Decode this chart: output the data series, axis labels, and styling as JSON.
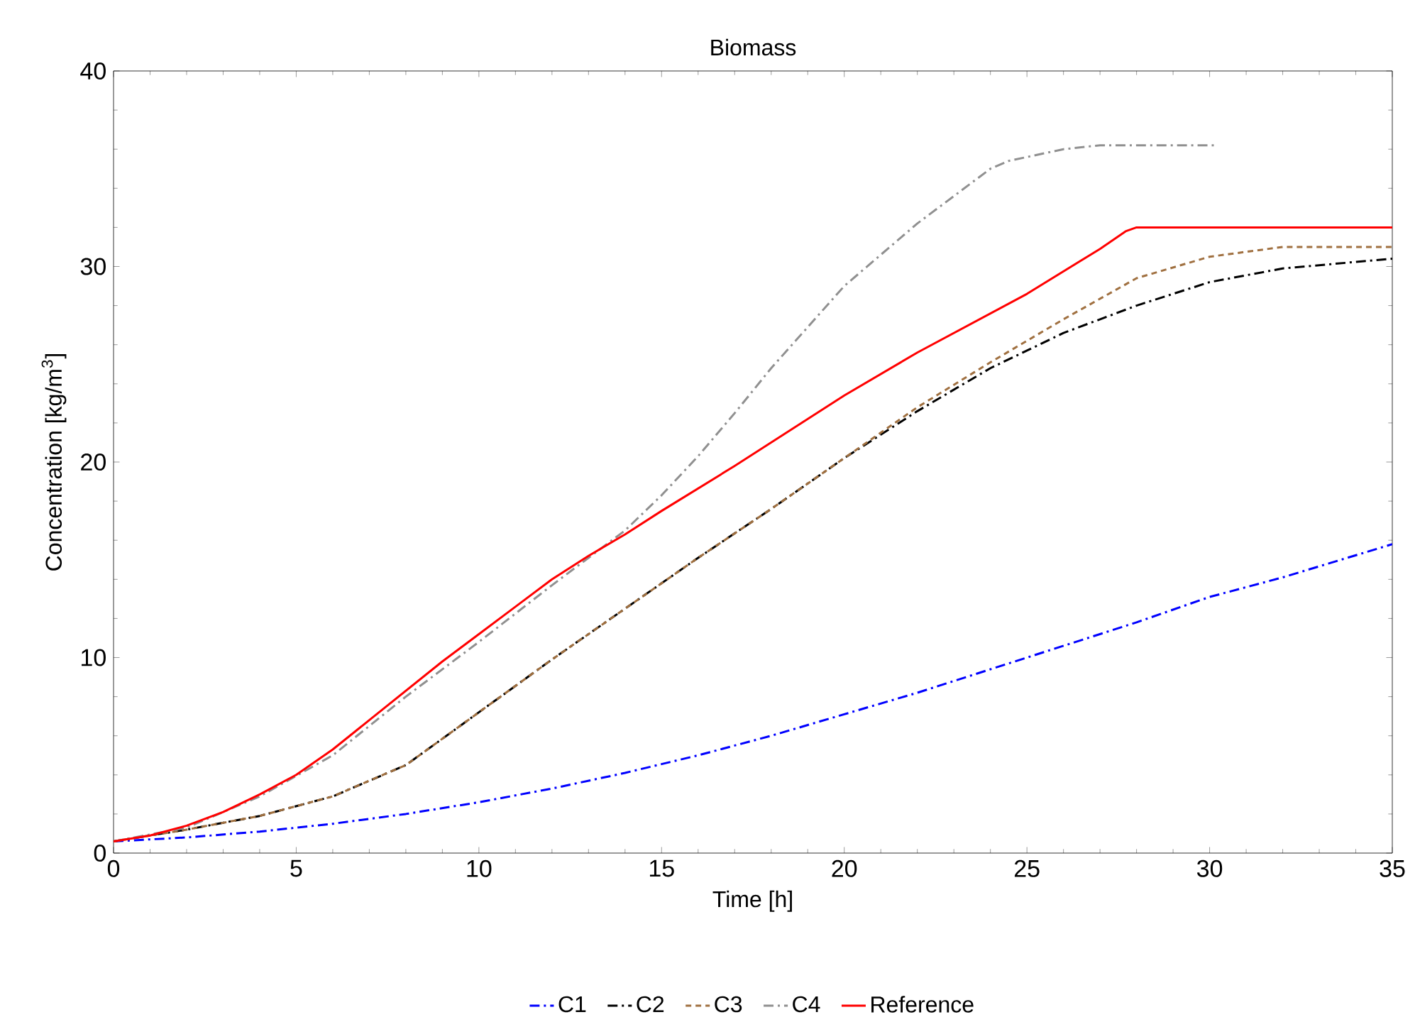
{
  "chart_data": {
    "type": "line",
    "title": "Biomass",
    "xlabel": "Time  [h]",
    "ylabel": "Concentration [kg/m$^{3}$]",
    "xlim": [
      0,
      35
    ],
    "ylim": [
      0,
      40
    ],
    "xticks": [
      0,
      5,
      10,
      15,
      20,
      25,
      30,
      35
    ],
    "yticks": [
      0,
      10,
      20,
      30,
      40
    ],
    "grid": false,
    "legend": "bottom",
    "series": [
      {
        "name": "C1",
        "color": "#0000ff",
        "line_style": "dashdot",
        "x": [
          0,
          2,
          4,
          6,
          8,
          10,
          12,
          14,
          16,
          18,
          20,
          22,
          25,
          28,
          30,
          32,
          35
        ],
        "values": [
          0.6,
          0.8,
          1.1,
          1.5,
          2.0,
          2.6,
          3.3,
          4.1,
          5.0,
          6.0,
          7.1,
          8.2,
          10.0,
          11.8,
          13.1,
          14.1,
          15.8
        ]
      },
      {
        "name": "C2",
        "color": "#000000",
        "line_style": "dashdot",
        "x": [
          0,
          2,
          4,
          6,
          8,
          10,
          12,
          14,
          16,
          18,
          20,
          22,
          24,
          26,
          28,
          30,
          32,
          35
        ],
        "values": [
          0.6,
          1.2,
          1.9,
          2.9,
          4.5,
          7.2,
          9.9,
          12.5,
          15.1,
          17.6,
          20.2,
          22.6,
          24.8,
          26.6,
          28.0,
          29.2,
          29.9,
          30.4
        ]
      },
      {
        "name": "C3",
        "color": "#a07040",
        "line_style": "dashed",
        "x": [
          0,
          2,
          4,
          6,
          8,
          10,
          12,
          14,
          16,
          18,
          20,
          22,
          24,
          26,
          28,
          30,
          32,
          35
        ],
        "values": [
          0.6,
          1.2,
          1.9,
          2.9,
          4.5,
          7.2,
          9.9,
          12.5,
          15.1,
          17.6,
          20.2,
          22.8,
          25.1,
          27.3,
          29.4,
          30.5,
          31.0,
          31.0
        ]
      },
      {
        "name": "C4",
        "color": "#909090",
        "line_style": "dashdot",
        "x": [
          0,
          2,
          4,
          6,
          8,
          10,
          12,
          13,
          14,
          15,
          16,
          17,
          18,
          20,
          22,
          24,
          24.5,
          26,
          27,
          30.2
        ],
        "values": [
          0.6,
          1.3,
          2.9,
          5.0,
          8.0,
          10.8,
          13.7,
          15.1,
          16.5,
          18.3,
          20.3,
          22.5,
          24.8,
          29.0,
          32.2,
          35.0,
          35.4,
          36.0,
          36.2,
          36.2
        ]
      },
      {
        "name": "Reference",
        "color": "#ff0000",
        "line_style": "solid",
        "x": [
          0,
          1,
          2,
          3,
          4,
          5,
          6,
          7,
          8,
          9,
          10,
          11,
          12,
          13,
          14,
          15,
          17,
          20,
          22,
          25,
          27,
          27.7,
          28,
          35
        ],
        "values": [
          0.6,
          0.9,
          1.4,
          2.1,
          3.0,
          4.0,
          5.3,
          6.8,
          8.3,
          9.8,
          11.2,
          12.6,
          14.0,
          15.2,
          16.3,
          17.5,
          19.8,
          23.4,
          25.6,
          28.6,
          30.9,
          31.8,
          32.0,
          32.0
        ]
      }
    ]
  }
}
